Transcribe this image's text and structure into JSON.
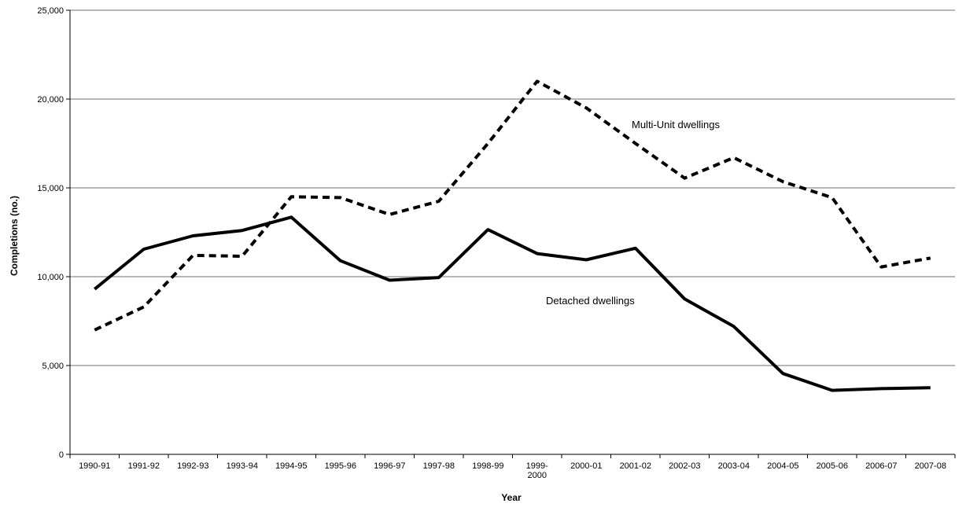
{
  "chart_data": {
    "type": "line",
    "title": "",
    "xlabel": "Year",
    "ylabel": "Completions (no.)",
    "ylim": [
      0,
      25000
    ],
    "yticks": [
      0,
      5000,
      10000,
      15000,
      20000,
      25000
    ],
    "ytick_labels": [
      "0",
      "5,000",
      "10,000",
      "15,000",
      "20,000",
      "25,000"
    ],
    "grid": "horizontal",
    "categories": [
      "1990-91",
      "1991-92",
      "1992-93",
      "1993-94",
      "1994-95",
      "1995-96",
      "1996-97",
      "1997-98",
      "1998-99",
      "1999-\n2000",
      "2000-01",
      "2001-02",
      "2002-03",
      "2003-04",
      "2004-05",
      "2005-06",
      "2006-07",
      "2007-08"
    ],
    "series": [
      {
        "name": "Detached dwellings",
        "style": "solid",
        "color": "#000000",
        "values": [
          9300,
          11550,
          12300,
          12600,
          13350,
          10900,
          9800,
          9950,
          12650,
          11300,
          10950,
          11600,
          8750,
          7200,
          4550,
          3600,
          3700,
          3750
        ]
      },
      {
        "name": "Multi-Unit dwellings",
        "style": "dashed",
        "color": "#000000",
        "values": [
          7000,
          8300,
          11200,
          11150,
          14500,
          14450,
          13500,
          14250,
          17500,
          21000,
          19500,
          17500,
          15550,
          16700,
          15350,
          14450,
          10550,
          11050
        ]
      }
    ],
    "annotations": [
      {
        "text": "Multi-Unit dwellings",
        "series": 1
      },
      {
        "text": "Detached dwellings",
        "series": 0
      }
    ]
  }
}
